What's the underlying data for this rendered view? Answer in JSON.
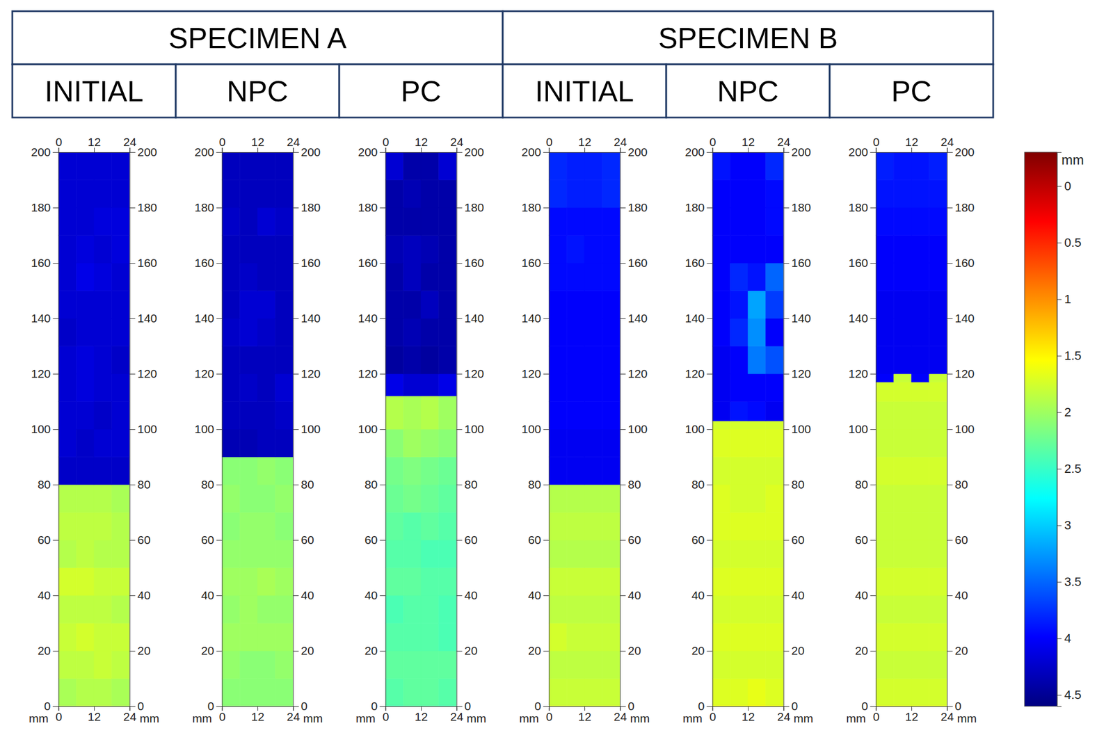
{
  "header": {
    "groups": [
      {
        "title": "SPECIMEN A",
        "columns": [
          "INITIAL",
          "NPC",
          "PC"
        ]
      },
      {
        "title": "SPECIMEN B",
        "columns": [
          "INITIAL",
          "NPC",
          "PC"
        ]
      }
    ]
  },
  "colorbar": {
    "label": "mm",
    "range": [
      -0.3,
      4.6
    ],
    "ticks": [
      0,
      0.5,
      1,
      1.5,
      2,
      2.5,
      3,
      3.5,
      4,
      4.5
    ]
  },
  "chart_data": [
    {
      "type": "heatmap",
      "xlabel": "mm",
      "xlim": [
        0,
        24
      ],
      "xticks": [
        0,
        12,
        24
      ],
      "ylim": [
        0,
        200
      ],
      "yticks": [
        0,
        20,
        40,
        60,
        80,
        100,
        120,
        140,
        160,
        180,
        200
      ],
      "x_edges": [
        0,
        6,
        12,
        18,
        24
      ],
      "y_edges": [
        0,
        10,
        20,
        30,
        40,
        50,
        60,
        70,
        80,
        90,
        100,
        110,
        120,
        130,
        140,
        150,
        160,
        170,
        180,
        190,
        200
      ],
      "cells": [
        [
          1.95,
          1.9,
          1.9,
          1.95
        ],
        [
          1.85,
          1.85,
          1.8,
          1.85
        ],
        [
          1.8,
          1.75,
          1.8,
          1.8
        ],
        [
          1.85,
          1.85,
          1.85,
          1.9
        ],
        [
          1.75,
          1.75,
          1.8,
          1.8
        ],
        [
          1.9,
          1.85,
          1.9,
          1.9
        ],
        [
          1.85,
          1.85,
          1.85,
          1.9
        ],
        [
          1.9,
          1.9,
          1.9,
          1.95
        ],
        [
          4.25,
          4.25,
          4.25,
          4.25
        ],
        [
          4.2,
          4.25,
          4.2,
          4.2
        ],
        [
          4.2,
          4.2,
          4.25,
          4.2
        ],
        [
          4.2,
          4.15,
          4.2,
          4.2
        ],
        [
          4.2,
          4.15,
          4.2,
          4.25
        ],
        [
          4.25,
          4.2,
          4.2,
          4.2
        ],
        [
          4.2,
          4.2,
          4.2,
          4.2
        ],
        [
          4.2,
          4.1,
          4.15,
          4.2
        ],
        [
          4.2,
          4.15,
          4.2,
          4.15
        ],
        [
          4.2,
          4.2,
          4.15,
          4.15
        ],
        [
          4.2,
          4.2,
          4.2,
          4.2
        ],
        [
          4.2,
          4.2,
          4.2,
          4.2
        ]
      ]
    },
    {
      "type": "heatmap",
      "xlabel": "mm",
      "xlim": [
        0,
        24
      ],
      "xticks": [
        0,
        12,
        24
      ],
      "ylim": [
        0,
        200
      ],
      "yticks": [
        0,
        20,
        40,
        60,
        80,
        100,
        120,
        140,
        160,
        180,
        200
      ],
      "x_edges": [
        0,
        6,
        12,
        18,
        24
      ],
      "y_edges": [
        0,
        10,
        20,
        30,
        40,
        50,
        60,
        70,
        80,
        90,
        100,
        110,
        120,
        130,
        140,
        150,
        160,
        170,
        180,
        190,
        200
      ],
      "cells": [
        [
          2.1,
          2.1,
          2.1,
          2.1
        ],
        [
          2.05,
          2.1,
          2.1,
          2.05
        ],
        [
          2.0,
          2.0,
          2.0,
          2.0
        ],
        [
          2.05,
          2.0,
          2.05,
          2.05
        ],
        [
          2.0,
          2.0,
          1.95,
          2.0
        ],
        [
          2.05,
          2.05,
          2.05,
          2.05
        ],
        [
          2.1,
          2.05,
          2.05,
          2.1
        ],
        [
          2.05,
          2.1,
          2.1,
          2.05
        ],
        [
          2.1,
          2.1,
          2.05,
          2.1
        ],
        [
          4.35,
          4.35,
          4.3,
          4.3
        ],
        [
          4.3,
          4.3,
          4.3,
          4.25
        ],
        [
          4.3,
          4.25,
          4.3,
          4.2
        ],
        [
          4.3,
          4.3,
          4.3,
          4.3
        ],
        [
          4.25,
          4.2,
          4.25,
          4.3
        ],
        [
          4.3,
          4.2,
          4.2,
          4.3
        ],
        [
          4.3,
          4.25,
          4.3,
          4.3
        ],
        [
          4.3,
          4.3,
          4.3,
          4.3
        ],
        [
          4.25,
          4.3,
          4.2,
          4.25
        ],
        [
          4.3,
          4.3,
          4.3,
          4.3
        ],
        [
          4.3,
          4.3,
          4.3,
          4.3
        ]
      ]
    },
    {
      "type": "heatmap",
      "xlabel": "mm",
      "xlim": [
        0,
        24
      ],
      "xticks": [
        0,
        12,
        24
      ],
      "ylim": [
        0,
        200
      ],
      "yticks": [
        0,
        20,
        40,
        60,
        80,
        100,
        120,
        140,
        160,
        180,
        200
      ],
      "x_edges": [
        0,
        6,
        12,
        18,
        24
      ],
      "y_edges": [
        0,
        10,
        20,
        30,
        40,
        50,
        60,
        70,
        80,
        90,
        100,
        112,
        120,
        130,
        140,
        150,
        160,
        170,
        180,
        190,
        200
      ],
      "cells": [
        [
          2.35,
          2.3,
          2.3,
          2.35
        ],
        [
          2.3,
          2.3,
          2.3,
          2.3
        ],
        [
          2.35,
          2.35,
          2.35,
          2.4
        ],
        [
          2.4,
          2.35,
          2.35,
          2.4
        ],
        [
          2.3,
          2.3,
          2.35,
          2.35
        ],
        [
          2.35,
          2.35,
          2.4,
          2.4
        ],
        [
          2.3,
          2.35,
          2.3,
          2.35
        ],
        [
          2.25,
          2.2,
          2.25,
          2.3
        ],
        [
          2.2,
          2.15,
          2.2,
          2.25
        ],
        [
          2.1,
          2.0,
          2.05,
          2.1
        ],
        [
          1.9,
          1.95,
          1.9,
          2.0
        ],
        [
          4.1,
          4.2,
          4.2,
          4.1
        ],
        [
          4.45,
          4.4,
          4.45,
          4.4
        ],
        [
          4.4,
          4.35,
          4.4,
          4.4
        ],
        [
          4.4,
          4.4,
          4.3,
          4.4
        ],
        [
          4.4,
          4.3,
          4.4,
          4.4
        ],
        [
          4.35,
          4.3,
          4.35,
          4.4
        ],
        [
          4.4,
          4.4,
          4.4,
          4.4
        ],
        [
          4.4,
          4.35,
          4.4,
          4.4
        ],
        [
          4.2,
          4.4,
          4.4,
          4.2
        ]
      ]
    },
    {
      "type": "heatmap",
      "xlabel": "mm",
      "xlim": [
        0,
        24
      ],
      "xticks": [
        0,
        12,
        24
      ],
      "ylim": [
        0,
        200
      ],
      "yticks": [
        0,
        20,
        40,
        60,
        80,
        100,
        120,
        140,
        160,
        180,
        200
      ],
      "x_edges": [
        0,
        6,
        12,
        18,
        24
      ],
      "y_edges": [
        0,
        10,
        20,
        30,
        40,
        50,
        60,
        70,
        80,
        90,
        100,
        110,
        120,
        130,
        140,
        150,
        160,
        170,
        180,
        190,
        200
      ],
      "cells": [
        [
          1.8,
          1.8,
          1.8,
          1.8
        ],
        [
          1.85,
          1.85,
          1.85,
          1.85
        ],
        [
          1.75,
          1.8,
          1.8,
          1.8
        ],
        [
          1.85,
          1.85,
          1.85,
          1.85
        ],
        [
          1.8,
          1.8,
          1.8,
          1.8
        ],
        [
          1.9,
          1.9,
          1.9,
          1.9
        ],
        [
          1.85,
          1.85,
          1.85,
          1.85
        ],
        [
          1.9,
          1.9,
          1.9,
          1.9
        ],
        [
          4.05,
          4.05,
          4.05,
          4.05
        ],
        [
          4.05,
          4.05,
          4.05,
          4.05
        ],
        [
          4.0,
          4.0,
          4.0,
          4.0
        ],
        [
          4.0,
          4.0,
          4.0,
          4.0
        ],
        [
          4.0,
          4.0,
          4.0,
          4.0
        ],
        [
          4.0,
          4.0,
          4.0,
          4.0
        ],
        [
          4.0,
          4.0,
          4.0,
          4.0
        ],
        [
          3.95,
          3.95,
          3.95,
          3.95
        ],
        [
          3.95,
          3.9,
          3.95,
          3.95
        ],
        [
          3.95,
          3.95,
          3.95,
          3.95
        ],
        [
          3.8,
          3.85,
          3.85,
          3.8
        ],
        [
          3.8,
          3.85,
          3.85,
          3.8
        ]
      ]
    },
    {
      "type": "heatmap",
      "xlabel": "mm",
      "xlim": [
        0,
        24
      ],
      "xticks": [
        0,
        12,
        24
      ],
      "ylim": [
        0,
        200
      ],
      "yticks": [
        0,
        20,
        40,
        60,
        80,
        100,
        120,
        140,
        160,
        180,
        200
      ],
      "x_edges": [
        0,
        6,
        12,
        18,
        24
      ],
      "y_edges": [
        0,
        10,
        20,
        30,
        40,
        50,
        60,
        70,
        80,
        90,
        100,
        103,
        110,
        120,
        130,
        140,
        150,
        160,
        170,
        180,
        190,
        200
      ],
      "cells": [
        [
          1.7,
          1.7,
          1.65,
          1.7
        ],
        [
          1.75,
          1.75,
          1.75,
          1.75
        ],
        [
          1.7,
          1.7,
          1.7,
          1.7
        ],
        [
          1.75,
          1.75,
          1.75,
          1.75
        ],
        [
          1.7,
          1.7,
          1.7,
          1.7
        ],
        [
          1.75,
          1.75,
          1.75,
          1.75
        ],
        [
          1.7,
          1.7,
          1.7,
          1.7
        ],
        [
          1.7,
          1.75,
          1.75,
          1.7
        ],
        [
          1.75,
          1.75,
          1.75,
          1.75
        ],
        [
          1.7,
          1.7,
          1.7,
          1.7
        ],
        [
          1.75,
          1.75,
          1.75,
          1.75
        ],
        [
          4.05,
          3.9,
          3.95,
          4.05
        ],
        [
          4.05,
          4.0,
          4.0,
          4.0
        ],
        [
          4.05,
          4.0,
          3.4,
          3.6
        ],
        [
          4.0,
          3.8,
          3.3,
          4.0
        ],
        [
          4.0,
          3.9,
          3.2,
          3.7
        ],
        [
          4.0,
          3.8,
          3.9,
          3.5
        ],
        [
          4.0,
          4.0,
          4.0,
          4.0
        ],
        [
          4.0,
          4.0,
          4.0,
          3.95
        ],
        [
          4.0,
          4.0,
          4.0,
          3.95
        ],
        [
          3.9,
          4.0,
          4.0,
          3.8
        ]
      ]
    },
    {
      "type": "heatmap",
      "xlabel": "mm",
      "xlim": [
        0,
        24
      ],
      "xticks": [
        0,
        12,
        24
      ],
      "ylim": [
        0,
        200
      ],
      "yticks": [
        0,
        20,
        40,
        60,
        80,
        100,
        120,
        140,
        160,
        180,
        200
      ],
      "x_edges": [
        0,
        6,
        12,
        18,
        24
      ],
      "y_edges": [
        0,
        10,
        20,
        30,
        40,
        50,
        60,
        70,
        80,
        90,
        100,
        110,
        117,
        120,
        130,
        140,
        150,
        160,
        170,
        180,
        190,
        200
      ],
      "cells": [
        [
          1.75,
          1.75,
          1.75,
          1.75
        ],
        [
          1.8,
          1.8,
          1.8,
          1.8
        ],
        [
          1.75,
          1.75,
          1.75,
          1.75
        ],
        [
          1.8,
          1.8,
          1.8,
          1.8
        ],
        [
          1.75,
          1.75,
          1.75,
          1.75
        ],
        [
          1.8,
          1.8,
          1.8,
          1.8
        ],
        [
          1.8,
          1.8,
          1.8,
          1.8
        ],
        [
          1.8,
          1.8,
          1.8,
          1.8
        ],
        [
          1.75,
          1.75,
          1.75,
          1.75
        ],
        [
          1.8,
          1.8,
          1.8,
          1.8
        ],
        [
          1.8,
          1.8,
          1.8,
          1.8
        ],
        [
          1.75,
          1.75,
          1.75,
          1.75
        ],
        [
          4.0,
          1.8,
          4.0,
          1.8
        ],
        [
          4.05,
          4.05,
          4.05,
          4.05
        ],
        [
          4.05,
          4.05,
          4.05,
          4.05
        ],
        [
          4.05,
          4.05,
          4.05,
          4.05
        ],
        [
          4.0,
          4.0,
          4.0,
          4.0
        ],
        [
          4.0,
          4.0,
          4.0,
          4.0
        ],
        [
          3.95,
          3.95,
          3.95,
          3.95
        ],
        [
          3.9,
          3.9,
          3.9,
          3.9
        ],
        [
          3.85,
          3.9,
          3.9,
          3.85
        ]
      ]
    }
  ]
}
